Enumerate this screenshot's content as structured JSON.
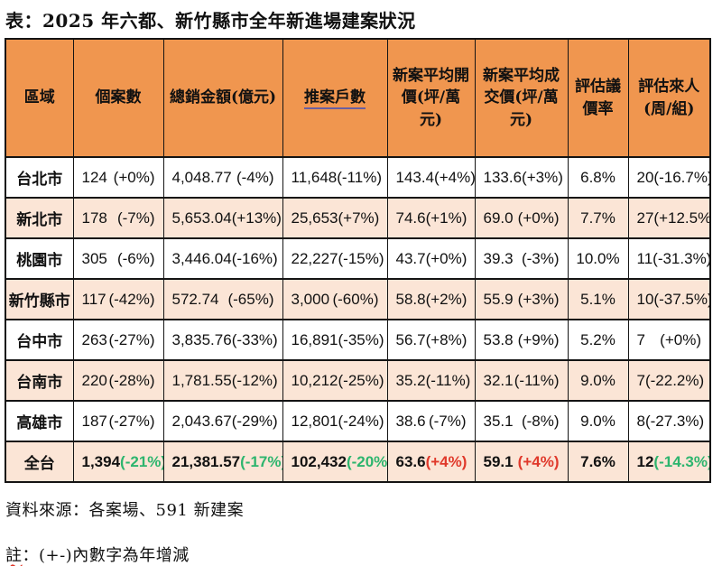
{
  "title": "表：2025 年六都、新竹縣市全年新進場建案狀況",
  "colors": {
    "header_bg": "#F0964F",
    "band_bg": "#FBE5D6",
    "green": "#2DB56E",
    "red": "#E0392B",
    "link_underline": "#6A5FA0"
  },
  "table": {
    "headers": [
      "區域",
      "個案數",
      "總銷金額(億元)",
      "推案戶數",
      "新案平均開價(坪/萬元)",
      "新案平均成交價(坪/萬元)",
      "評估議價率",
      "評估來人(周/組)"
    ],
    "rows": [
      {
        "region": "台北市",
        "cells": [
          {
            "value": "124",
            "pct": "(+0%)"
          },
          {
            "value": "4,048.77",
            "pct": "(-4%)"
          },
          {
            "value": "11,648",
            "pct": "(-11%)"
          },
          {
            "value": "143.4",
            "pct": "(+4%)"
          },
          {
            "value": "133.6",
            "pct": "(+3%)"
          },
          {
            "value": "6.8%"
          },
          {
            "value": "20",
            "pct": "(-16.7%)"
          }
        ]
      },
      {
        "region": "新北市",
        "cells": [
          {
            "value": "178",
            "pct": "(-7%)"
          },
          {
            "value": "5,653.04",
            "pct": "(+13%)"
          },
          {
            "value": "25,653",
            "pct": "(+7%)"
          },
          {
            "value": "74.6",
            "pct": "(+1%)"
          },
          {
            "value": "69.0",
            "pct": "(+0%)"
          },
          {
            "value": "7.7%"
          },
          {
            "value": "27",
            "pct": "(+12.5%)"
          }
        ]
      },
      {
        "region": "桃園市",
        "cells": [
          {
            "value": "305",
            "pct": "(-6%)"
          },
          {
            "value": "3,446.04",
            "pct": "(-16%)"
          },
          {
            "value": "22,227",
            "pct": "(-15%)"
          },
          {
            "value": "43.7",
            "pct": "(+0%)"
          },
          {
            "value": "39.3",
            "pct": "(-3%)"
          },
          {
            "value": "10.0%"
          },
          {
            "value": "11",
            "pct": "(-31.3%)"
          }
        ]
      },
      {
        "region": "新竹縣市",
        "cells": [
          {
            "value": "117",
            "pct": "(-42%)"
          },
          {
            "value": "572.74",
            "pct": "(-65%)"
          },
          {
            "value": "3,000",
            "pct": "(-60%)"
          },
          {
            "value": "58.8",
            "pct": "(+2%)"
          },
          {
            "value": "55.9",
            "pct": "(+3%)"
          },
          {
            "value": "5.1%"
          },
          {
            "value": "10",
            "pct": "(-37.5%)"
          }
        ]
      },
      {
        "region": "台中市",
        "cells": [
          {
            "value": "263",
            "pct": "(-27%)"
          },
          {
            "value": "3,835.76",
            "pct": "(-33%)"
          },
          {
            "value": "16,891",
            "pct": "(-35%)"
          },
          {
            "value": "56.7",
            "pct": "(+8%)"
          },
          {
            "value": "53.8",
            "pct": "(+9%)"
          },
          {
            "value": "5.2%"
          },
          {
            "value": "7",
            "pct": "(+0%)"
          }
        ]
      },
      {
        "region": "台南市",
        "cells": [
          {
            "value": "220",
            "pct": "(-28%)"
          },
          {
            "value": "1,781.55",
            "pct": "(-12%)"
          },
          {
            "value": "10,212",
            "pct": "(-25%)"
          },
          {
            "value": "35.2",
            "pct": "(-11%)"
          },
          {
            "value": "32.1",
            "pct": "(-11%)"
          },
          {
            "value": "9.0%"
          },
          {
            "value": "7",
            "pct": "(-22.2%)"
          }
        ]
      },
      {
        "region": "高雄市",
        "cells": [
          {
            "value": "187",
            "pct": "(-27%)"
          },
          {
            "value": "2,043.67",
            "pct": "(-29%)"
          },
          {
            "value": "12,801",
            "pct": "(-24%)"
          },
          {
            "value": "38.6",
            "pct": "(-7%)"
          },
          {
            "value": "35.1",
            "pct": "(-8%)"
          },
          {
            "value": "9.0%"
          },
          {
            "value": "8",
            "pct": "(-27.3%)"
          }
        ]
      }
    ],
    "total_row": {
      "region": "全台",
      "bold": true,
      "cells": [
        {
          "value": "1,394",
          "pct": "(-21%)",
          "pct_class": "green"
        },
        {
          "value": "21,381.57",
          "pct": "(-17%)",
          "pct_class": "green"
        },
        {
          "value": "102,432",
          "pct": "(-20%)",
          "pct_class": "green"
        },
        {
          "value": "63.6",
          "pct": "(+4%)",
          "pct_class": "red"
        },
        {
          "value": "59.1",
          "pct": "(+4%)",
          "pct_class": "red"
        },
        {
          "value": "7.6%"
        },
        {
          "value": "12",
          "pct": "(-14.3%)",
          "pct_class": "green"
        }
      ]
    }
  },
  "footer": {
    "source": "資料來源：各案場、591 新建案",
    "note_prefix": "註",
    "note_rest": "：(+-)內數字為年增減"
  }
}
